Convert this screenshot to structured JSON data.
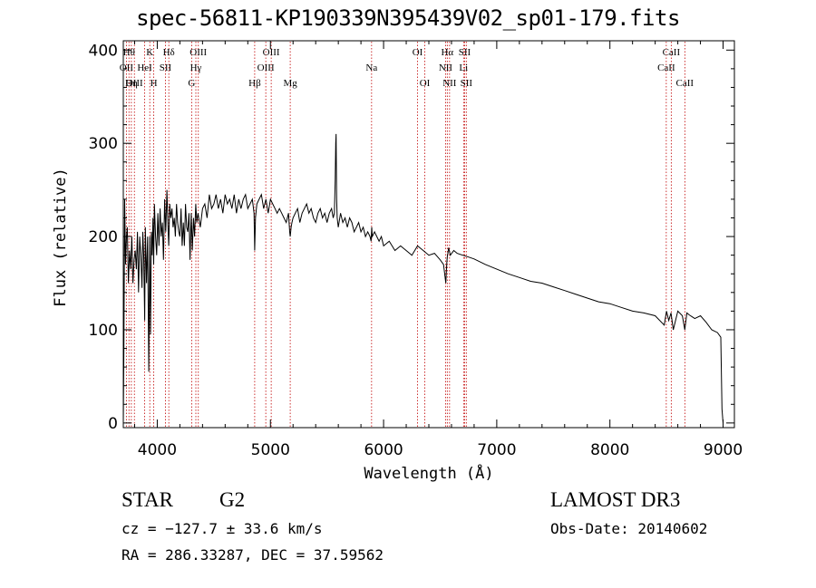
{
  "chart_data": {
    "type": "line",
    "title": "spec-56811-KP190339N395439V02_sp01-179.fits",
    "xlabel": "Wavelength (Å)",
    "ylabel": "Flux (relative)",
    "xlim": [
      3700,
      9100
    ],
    "ylim": [
      -5,
      410
    ],
    "x_ticks": [
      4000,
      5000,
      6000,
      7000,
      8000,
      9000
    ],
    "x_tick_labels": [
      "4000",
      "5000",
      "6000",
      "7000",
      "8000",
      "9000"
    ],
    "y_ticks": [
      0,
      100,
      200,
      300,
      400
    ],
    "y_tick_labels": [
      "0",
      "100",
      "200",
      "300",
      "400"
    ],
    "grid": false,
    "series": [
      {
        "name": "flux",
        "x": [
          3700,
          3705,
          3712,
          3720,
          3728,
          3735,
          3745,
          3755,
          3765,
          3775,
          3785,
          3795,
          3805,
          3815,
          3825,
          3835,
          3845,
          3855,
          3865,
          3872,
          3880,
          3889,
          3895,
          3905,
          3915,
          3925,
          3933,
          3940,
          3948,
          3955,
          3962,
          3968,
          3975,
          3985,
          3995,
          4005,
          4015,
          4025,
          4035,
          4045,
          4055,
          4065,
          4075,
          4085,
          4095,
          4101,
          4110,
          4120,
          4130,
          4140,
          4150,
          4160,
          4170,
          4180,
          4190,
          4200,
          4210,
          4220,
          4230,
          4240,
          4250,
          4260,
          4270,
          4280,
          4290,
          4300,
          4310,
          4320,
          4330,
          4340,
          4350,
          4360,
          4380,
          4400,
          4420,
          4440,
          4460,
          4480,
          4500,
          4520,
          4540,
          4560,
          4580,
          4600,
          4620,
          4640,
          4660,
          4680,
          4700,
          4720,
          4740,
          4760,
          4780,
          4800,
          4820,
          4840,
          4855,
          4861,
          4868,
          4880,
          4900,
          4920,
          4940,
          4960,
          4980,
          5000,
          5020,
          5040,
          5060,
          5080,
          5100,
          5120,
          5140,
          5160,
          5170,
          5175,
          5183,
          5190,
          5200,
          5220,
          5240,
          5260,
          5280,
          5300,
          5320,
          5340,
          5360,
          5380,
          5400,
          5420,
          5440,
          5460,
          5480,
          5500,
          5520,
          5540,
          5555,
          5565,
          5572,
          5577,
          5580,
          5585,
          5590,
          5600,
          5620,
          5640,
          5660,
          5680,
          5700,
          5720,
          5740,
          5760,
          5780,
          5800,
          5820,
          5840,
          5860,
          5880,
          5890,
          5895,
          5900,
          5920,
          5940,
          5960,
          5980,
          6000,
          6050,
          6100,
          6150,
          6200,
          6250,
          6300,
          6350,
          6400,
          6450,
          6500,
          6530,
          6550,
          6558,
          6563,
          6568,
          6575,
          6590,
          6620,
          6650,
          6700,
          6750,
          6800,
          6900,
          7000,
          7100,
          7200,
          7300,
          7400,
          7500,
          7600,
          7700,
          7800,
          7900,
          8000,
          8100,
          8200,
          8300,
          8400,
          8480,
          8500,
          8520,
          8540,
          8560,
          8600,
          8640,
          8662,
          8680,
          8700,
          8750,
          8800,
          8850,
          8900,
          8950,
          8980,
          8990,
          9000
        ],
        "values": [
          0,
          75,
          240,
          170,
          200,
          210,
          150,
          185,
          165,
          200,
          150,
          175,
          185,
          165,
          205,
          140,
          200,
          180,
          145,
          205,
          180,
          110,
          210,
          150,
          200,
          55,
          200,
          95,
          205,
          180,
          220,
          170,
          235,
          200,
          180,
          225,
          190,
          230,
          200,
          215,
          175,
          240,
          205,
          250,
          210,
          190,
          235,
          220,
          230,
          210,
          220,
          200,
          235,
          215,
          205,
          200,
          230,
          190,
          215,
          190,
          235,
          210,
          205,
          225,
          175,
          225,
          185,
          220,
          200,
          235,
          215,
          225,
          210,
          230,
          235,
          220,
          245,
          230,
          235,
          245,
          230,
          240,
          225,
          245,
          235,
          240,
          230,
          245,
          225,
          240,
          230,
          240,
          245,
          230,
          235,
          240,
          225,
          185,
          220,
          235,
          240,
          245,
          230,
          240,
          225,
          240,
          235,
          230,
          225,
          230,
          225,
          220,
          215,
          225,
          205,
          200,
          210,
          215,
          220,
          225,
          230,
          215,
          225,
          230,
          235,
          225,
          230,
          220,
          215,
          225,
          230,
          220,
          225,
          215,
          225,
          230,
          220,
          225,
          260,
          300,
          310,
          240,
          220,
          210,
          225,
          215,
          220,
          210,
          220,
          215,
          205,
          210,
          215,
          205,
          210,
          200,
          205,
          200,
          195,
          210,
          200,
          205,
          200,
          195,
          200,
          190,
          195,
          185,
          190,
          185,
          180,
          190,
          185,
          180,
          182,
          175,
          170,
          150,
          170,
          178,
          182,
          188,
          180,
          185,
          182,
          180,
          178,
          176,
          170,
          165,
          160,
          156,
          152,
          150,
          146,
          142,
          138,
          134,
          130,
          128,
          124,
          120,
          118,
          115,
          105,
          120,
          110,
          118,
          100,
          120,
          115,
          100,
          118,
          116,
          112,
          115,
          108,
          100,
          97,
          92,
          15,
          0
        ]
      }
    ],
    "line_labels": [
      {
        "x": 3727,
        "label": "OII",
        "row": 1
      },
      {
        "x": 3750,
        "label": "Hθ",
        "row": 0
      },
      {
        "x": 3771,
        "label": "Hη",
        "row": 2
      },
      {
        "x": 3798,
        "label": "OIII",
        "row": 2
      },
      {
        "x": 3889,
        "label": "HeI",
        "row": 1
      },
      {
        "x": 3934,
        "label": "K",
        "row": 0
      },
      {
        "x": 3969,
        "label": "H",
        "row": 2
      },
      {
        "x": 4072,
        "label": "SII",
        "row": 1
      },
      {
        "x": 4102,
        "label": "Hδ",
        "row": 0
      },
      {
        "x": 4304,
        "label": "G",
        "row": 2
      },
      {
        "x": 4341,
        "label": "Hγ",
        "row": 1
      },
      {
        "x": 4363,
        "label": "OIII",
        "row": 0
      },
      {
        "x": 4861,
        "label": "Hβ",
        "row": 2
      },
      {
        "x": 4959,
        "label": "OIII",
        "row": 1
      },
      {
        "x": 5007,
        "label": "OIII",
        "row": 0
      },
      {
        "x": 5175,
        "label": "Mg",
        "row": 2
      },
      {
        "x": 5894,
        "label": "Na",
        "row": 1
      },
      {
        "x": 6300,
        "label": "OI",
        "row": 0
      },
      {
        "x": 6364,
        "label": "OI",
        "row": 2
      },
      {
        "x": 6548,
        "label": "NII",
        "row": 1
      },
      {
        "x": 6563,
        "label": "Hα",
        "row": 0
      },
      {
        "x": 6583,
        "label": "NII",
        "row": 2
      },
      {
        "x": 6707,
        "label": "Li",
        "row": 1
      },
      {
        "x": 6716,
        "label": "SII",
        "row": 0
      },
      {
        "x": 6731,
        "label": "SII",
        "row": 2
      },
      {
        "x": 8498,
        "label": "CaII",
        "row": 1
      },
      {
        "x": 8542,
        "label": "CaII",
        "row": 0
      },
      {
        "x": 8662,
        "label": "CaII",
        "row": 2
      }
    ]
  },
  "info": {
    "object_class": "STAR",
    "subclass": "G2",
    "redshift_line": "cz = −127.7 ± 33.6 km/s",
    "coords_line": "RA = 286.33287, DEC =  37.59562",
    "survey": "LAMOST DR3",
    "obs_date": "Obs-Date: 20140602"
  }
}
